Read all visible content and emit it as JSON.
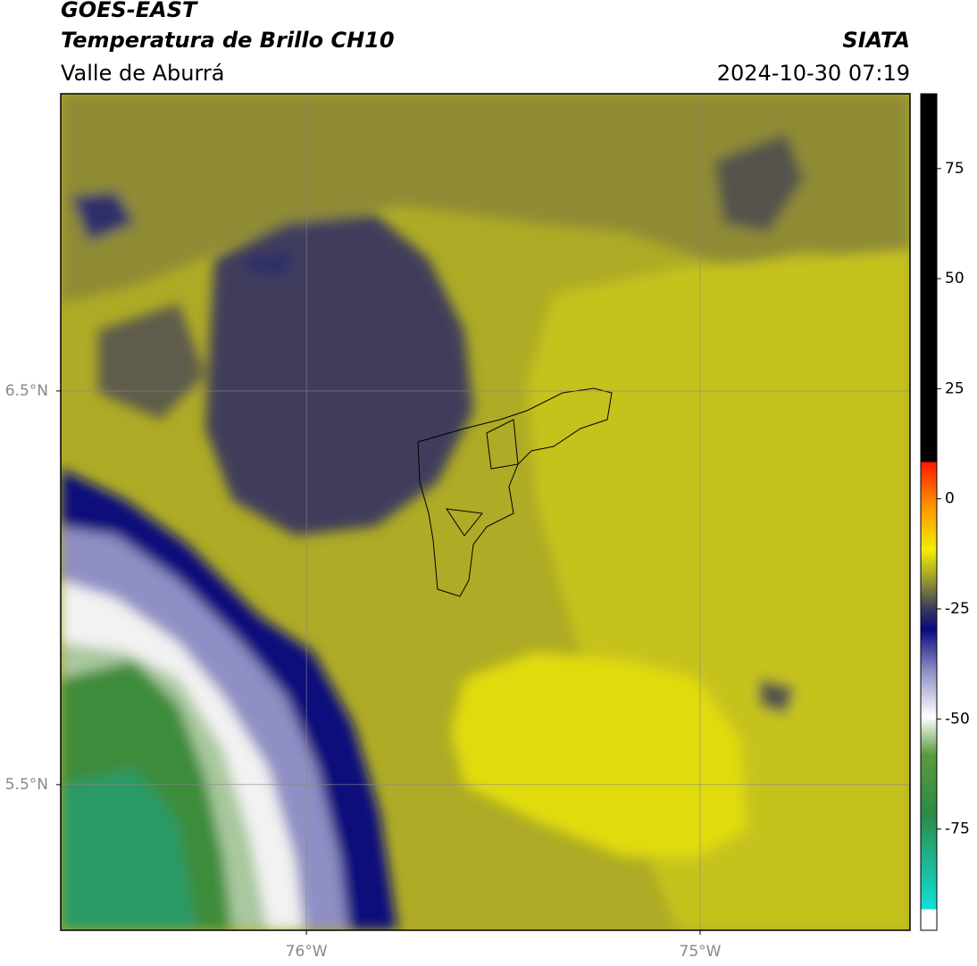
{
  "header": {
    "title": "GOES-EAST",
    "subtitle": "Temperatura de Brillo CH10",
    "source": "SIATA",
    "region": "Valle de Aburrá",
    "datetime": "2024-10-30 07:19"
  },
  "map": {
    "xlim": [
      -76.624,
      -74.467
    ],
    "ylim": [
      5.13,
      7.255
    ],
    "xticks": [
      {
        "value": -76,
        "label": "76°W"
      },
      {
        "value": -75,
        "label": "75°W"
      }
    ],
    "yticks": [
      {
        "value": 6.5,
        "label": "6.5°N"
      },
      {
        "value": 5.5,
        "label": "5.5°N"
      }
    ],
    "grid": true
  },
  "colorbar": {
    "clim": [
      -98,
      92
    ],
    "ticks": [
      75,
      50,
      25,
      0,
      -25,
      -50,
      -75
    ]
  }
}
